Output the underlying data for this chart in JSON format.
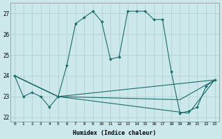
{
  "xlabel": "Humidex (Indice chaleur)",
  "xlim": [
    -0.5,
    23.5
  ],
  "ylim": [
    21.8,
    27.5
  ],
  "yticks": [
    22,
    23,
    24,
    25,
    26,
    27
  ],
  "xticks": [
    0,
    1,
    2,
    3,
    4,
    5,
    6,
    7,
    8,
    9,
    10,
    11,
    12,
    13,
    14,
    15,
    16,
    17,
    18,
    19,
    20,
    21,
    22,
    23
  ],
  "bg_color": "#cce8ea",
  "grid_color": "#aacccc",
  "line_color": "#1a6b6b",
  "line1_x": [
    0,
    1,
    2,
    3,
    4,
    5,
    6,
    7,
    8,
    9,
    10,
    11,
    12,
    13,
    14,
    15,
    16,
    17,
    18,
    19,
    20,
    21,
    22,
    23
  ],
  "line1_y": [
    24.0,
    23.0,
    23.2,
    23.0,
    22.5,
    23.0,
    24.5,
    26.5,
    26.8,
    27.1,
    26.6,
    24.8,
    24.9,
    27.1,
    27.1,
    27.1,
    26.7,
    26.7,
    24.2,
    22.2,
    22.3,
    22.5,
    23.5,
    23.8
  ],
  "line2_x": [
    0,
    5,
    23
  ],
  "line2_y": [
    24.0,
    23.0,
    23.8
  ],
  "line3_x": [
    0,
    5,
    19,
    23
  ],
  "line3_y": [
    24.0,
    23.0,
    22.85,
    23.8
  ],
  "line4_x": [
    0,
    5,
    20,
    23
  ],
  "line4_y": [
    24.0,
    23.0,
    22.2,
    23.8
  ]
}
